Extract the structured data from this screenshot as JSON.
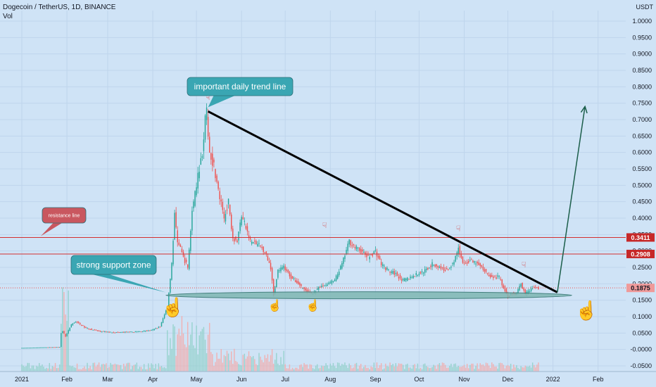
{
  "header": {
    "title": "Dogecoin / TetherUS, 1D, BINANCE",
    "vol_label": "Vol"
  },
  "colors": {
    "background": "#cfe3f6",
    "up_candle": "#26a69a",
    "down_candle": "#ef5350",
    "trend_line": "#000000",
    "resistance_line": "#d32f2f",
    "support_zone": "#7fb7b3",
    "arrow": "#1b5e4a",
    "callout_teal": "#3aa6b3",
    "callout_red": "#c9575f",
    "price_badge": "#c62828",
    "current_badge": "#ef9a9a"
  },
  "chart_data": {
    "type": "candlestick",
    "title": "Dogecoin / TetherUS, 1D, BINANCE",
    "ylabel": "USDT",
    "ylim": [
      -0.05,
      1.0
    ],
    "y_ticks": [
      "1.0000",
      "0.9500",
      "0.9000",
      "0.8500",
      "0.8000",
      "0.7500",
      "0.7000",
      "0.6500",
      "0.6000",
      "0.5500",
      "0.5000",
      "0.4500",
      "0.4000",
      "0.3500",
      "0.3000",
      "0.2500",
      "0.2000",
      "0.1500",
      "0.1000",
      "0.0500",
      "-0.0000",
      "-0.0500"
    ],
    "y_tick_values": [
      1.0,
      0.95,
      0.9,
      0.85,
      0.8,
      0.75,
      0.7,
      0.65,
      0.6,
      0.55,
      0.5,
      0.45,
      0.4,
      0.35,
      0.3,
      0.25,
      0.2,
      0.15,
      0.1,
      0.05,
      0.0,
      -0.05
    ],
    "x_ticks": [
      {
        "label": "2021",
        "day": 0
      },
      {
        "label": "Feb",
        "day": 31
      },
      {
        "label": "Mar",
        "day": 59
      },
      {
        "label": "Apr",
        "day": 90
      },
      {
        "label": "May",
        "day": 120
      },
      {
        "label": "Jun",
        "day": 151
      },
      {
        "label": "Jul",
        "day": 181
      },
      {
        "label": "Aug",
        "day": 212
      },
      {
        "label": "Sep",
        "day": 243
      },
      {
        "label": "Oct",
        "day": 273
      },
      {
        "label": "Nov",
        "day": 304
      },
      {
        "label": "Dec",
        "day": 334
      },
      {
        "label": "2022",
        "day": 365
      },
      {
        "label": "Feb",
        "day": 396
      }
    ],
    "x_range_days": [
      -15,
      415
    ],
    "price_path": [
      [
        0,
        0.0047
      ],
      [
        27,
        0.0075
      ],
      [
        28,
        0.05
      ],
      [
        29,
        0.055
      ],
      [
        31,
        0.04
      ],
      [
        35,
        0.075
      ],
      [
        38,
        0.085
      ],
      [
        45,
        0.065
      ],
      [
        55,
        0.055
      ],
      [
        65,
        0.052
      ],
      [
        80,
        0.054
      ],
      [
        90,
        0.058
      ],
      [
        96,
        0.07
      ],
      [
        101,
        0.13
      ],
      [
        104,
        0.26
      ],
      [
        106,
        0.41
      ],
      [
        108,
        0.33
      ],
      [
        112,
        0.28
      ],
      [
        115,
        0.25
      ],
      [
        118,
        0.42
      ],
      [
        122,
        0.53
      ],
      [
        125,
        0.6
      ],
      [
        127,
        0.7
      ],
      [
        128,
        0.72
      ],
      [
        130,
        0.6
      ],
      [
        133,
        0.56
      ],
      [
        136,
        0.48
      ],
      [
        140,
        0.4
      ],
      [
        143,
        0.45
      ],
      [
        146,
        0.34
      ],
      [
        149,
        0.33
      ],
      [
        152,
        0.41
      ],
      [
        155,
        0.37
      ],
      [
        158,
        0.33
      ],
      [
        163,
        0.32
      ],
      [
        168,
        0.3
      ],
      [
        172,
        0.25
      ],
      [
        174,
        0.17
      ],
      [
        177,
        0.24
      ],
      [
        181,
        0.25
      ],
      [
        186,
        0.22
      ],
      [
        191,
        0.2
      ],
      [
        196,
        0.18
      ],
      [
        201,
        0.17
      ],
      [
        206,
        0.19
      ],
      [
        211,
        0.2
      ],
      [
        216,
        0.21
      ],
      [
        221,
        0.26
      ],
      [
        226,
        0.33
      ],
      [
        230,
        0.31
      ],
      [
        234,
        0.3
      ],
      [
        239,
        0.28
      ],
      [
        244,
        0.3
      ],
      [
        248,
        0.26
      ],
      [
        253,
        0.24
      ],
      [
        258,
        0.23
      ],
      [
        263,
        0.21
      ],
      [
        268,
        0.22
      ],
      [
        273,
        0.23
      ],
      [
        278,
        0.24
      ],
      [
        283,
        0.26
      ],
      [
        288,
        0.25
      ],
      [
        293,
        0.24
      ],
      [
        298,
        0.27
      ],
      [
        301,
        0.31
      ],
      [
        304,
        0.26
      ],
      [
        309,
        0.27
      ],
      [
        314,
        0.26
      ],
      [
        319,
        0.24
      ],
      [
        324,
        0.22
      ],
      [
        329,
        0.22
      ],
      [
        332,
        0.19
      ],
      [
        335,
        0.16
      ],
      [
        338,
        0.17
      ],
      [
        341,
        0.17
      ],
      [
        344,
        0.2
      ],
      [
        347,
        0.17
      ],
      [
        350,
        0.18
      ],
      [
        353,
        0.19
      ],
      [
        355,
        0.1875
      ]
    ],
    "trend_line": {
      "from": [
        128,
        0.725
      ],
      "to": [
        368,
        0.174
      ],
      "label": "important daily trend line"
    },
    "resistance_lines": [
      {
        "value": 0.3411,
        "label": "0.3411"
      },
      {
        "value": 0.2908,
        "label": "0.2908"
      }
    ],
    "current_price": {
      "value": 0.1875,
      "label": "0.1875"
    },
    "support_zone": {
      "from_day": 99,
      "to_day": 378,
      "value": 0.165,
      "label": "strong support zone"
    },
    "target_arrow": {
      "from": [
        368,
        0.174
      ],
      "to": [
        387,
        0.74
      ]
    },
    "resistance_callout": {
      "label": "resistance line"
    },
    "touch_markers_top": [
      [
        128,
        0.76
      ],
      [
        208,
        0.37
      ],
      [
        300,
        0.36
      ],
      [
        345,
        0.25
      ]
    ],
    "touch_markers_bottom": [
      [
        104,
        0.14
      ],
      [
        174,
        0.14
      ],
      [
        200,
        0.14
      ],
      [
        388,
        0.13
      ]
    ]
  }
}
